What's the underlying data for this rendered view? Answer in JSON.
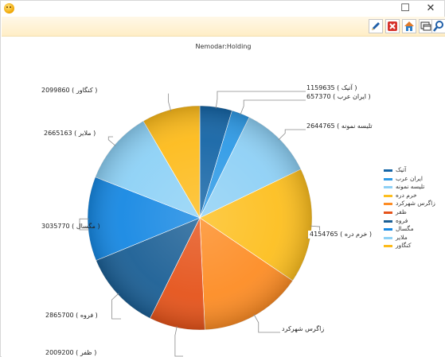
{
  "window": {
    "controls": {
      "close": "✕",
      "maximize": "☐"
    }
  },
  "toolbar": {
    "buttons": [
      {
        "icon": "pencil-icon",
        "color": "#1f5fa8"
      },
      {
        "icon": "delete-icon",
        "color": "#d6322c"
      },
      {
        "icon": "home-icon",
        "color": "#2f7fc8"
      },
      {
        "icon": "window-icon",
        "color": "#333333"
      },
      {
        "icon": "search-icon",
        "color": "#1f5fa8"
      }
    ]
  },
  "chart_data": {
    "type": "pie",
    "title": "Nemodar:Holding",
    "series": [
      {
        "name": "آتیک",
        "value": 1159635,
        "color": "#1565a6",
        "label_text": "1159635 ( آتیک )"
      },
      {
        "name": "ایران عرب",
        "value": 657370,
        "color": "#2e9ae6",
        "label_text": "657370 ( ایران عرب )"
      },
      {
        "name": "تلیسه نمونه",
        "value": 2644765,
        "color": "#8ed0f5",
        "label_text": "2644765 ( تلیسه نمونه"
      },
      {
        "name": "خرم دره",
        "value": 4154765,
        "color": "#fdbf1f",
        "label_text": "4154765 ( خرم دره )"
      },
      {
        "name": "زاگرس شهرکرد",
        "value": 3700000,
        "color": "#fd8c24",
        "label_text": "زاگرس شهرکرد"
      },
      {
        "name": "ظفر",
        "value": 2009200,
        "color": "#e5531a",
        "label_text": "2009200 ( ظفر )"
      },
      {
        "name": "فروه",
        "value": 2865700,
        "color": "#1b5f95",
        "label_text": "2865700 ( فروه )"
      },
      {
        "name": "مگسال",
        "value": 3035770,
        "color": "#1688e3",
        "label_text": "3035770 ( مگسال )"
      },
      {
        "name": "ملاير",
        "value": 2665163,
        "color": "#8dd1f6",
        "label_text": "2665163 ( ملاير )"
      },
      {
        "name": "کنگاور",
        "value": 2099860,
        "color": "#fdbb1b",
        "label_text": "2099860 ( کنگاور )"
      }
    ],
    "legend_position": "right"
  }
}
